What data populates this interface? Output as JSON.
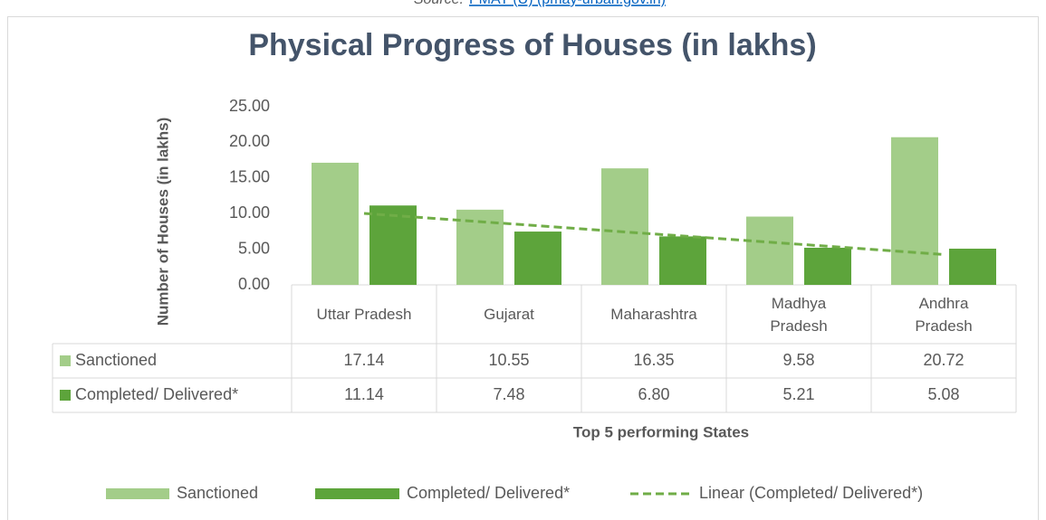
{
  "source": {
    "label": "Source:",
    "link": "PMAY (U) (pmay-urban.gov.in)"
  },
  "chart_data": {
    "type": "bar",
    "title": "Physical Progress of Houses (in lakhs)",
    "y_label": "Number of Houses (in lakhs)",
    "x_label": "Top 5 performing States",
    "categories": [
      "Uttar Pradesh",
      "Gujarat",
      "Maharashtra",
      "Madhya Pradesh",
      "Andhra Pradesh"
    ],
    "series": [
      {
        "name": "Sanctioned",
        "color": "#a3cd89",
        "values": [
          17.14,
          10.55,
          16.35,
          9.58,
          20.72
        ]
      },
      {
        "name": "Completed/ Delivered*",
        "color": "#5da43b",
        "values": [
          11.14,
          7.48,
          6.8,
          5.21,
          5.08
        ],
        "value_labels": [
          "11.14",
          "7.48",
          "6.80",
          "5.21",
          "5.08"
        ],
        "trendline": {
          "name": "Linear (Completed/ Delivered*)",
          "kind": "linear",
          "color": "#70ad47"
        }
      }
    ],
    "ylim": [
      0,
      25
    ],
    "yticks": [
      {
        "value": 0,
        "label": "0.00"
      },
      {
        "value": 5,
        "label": "5.00"
      },
      {
        "value": 10,
        "label": "10.00"
      },
      {
        "value": 15,
        "label": "15.00"
      },
      {
        "value": 20,
        "label": "20.00"
      },
      {
        "value": 25,
        "label": "25.00"
      }
    ],
    "data_table": true,
    "legend": "bottom"
  }
}
